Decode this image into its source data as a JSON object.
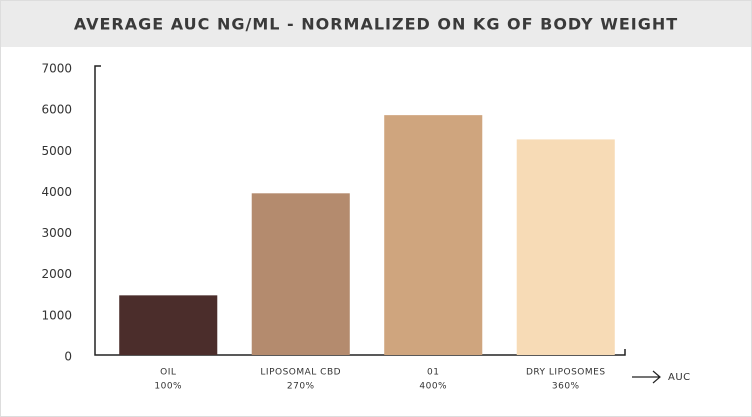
{
  "chart_data": {
    "type": "bar",
    "title": "AVERAGE AUC NG/ML - NORMALIZED ON KG OF BODY WEIGHT",
    "categories": [
      "OIL",
      "LIPOSOMAL CBD",
      "01",
      "DRY LIPOSOMES"
    ],
    "category_sublabels": [
      "100%",
      "270%",
      "400%",
      "360%"
    ],
    "values": [
      1450,
      3930,
      5830,
      5240
    ],
    "colors": [
      "#4b2d2b",
      "#b48b6e",
      "#cfa57e",
      "#f7dbb6"
    ],
    "x_label": "AUC",
    "ylim": [
      0,
      7000
    ],
    "yticks": [
      0,
      1000,
      2000,
      3000,
      4000,
      5000,
      6000,
      7000
    ],
    "grid": false
  }
}
